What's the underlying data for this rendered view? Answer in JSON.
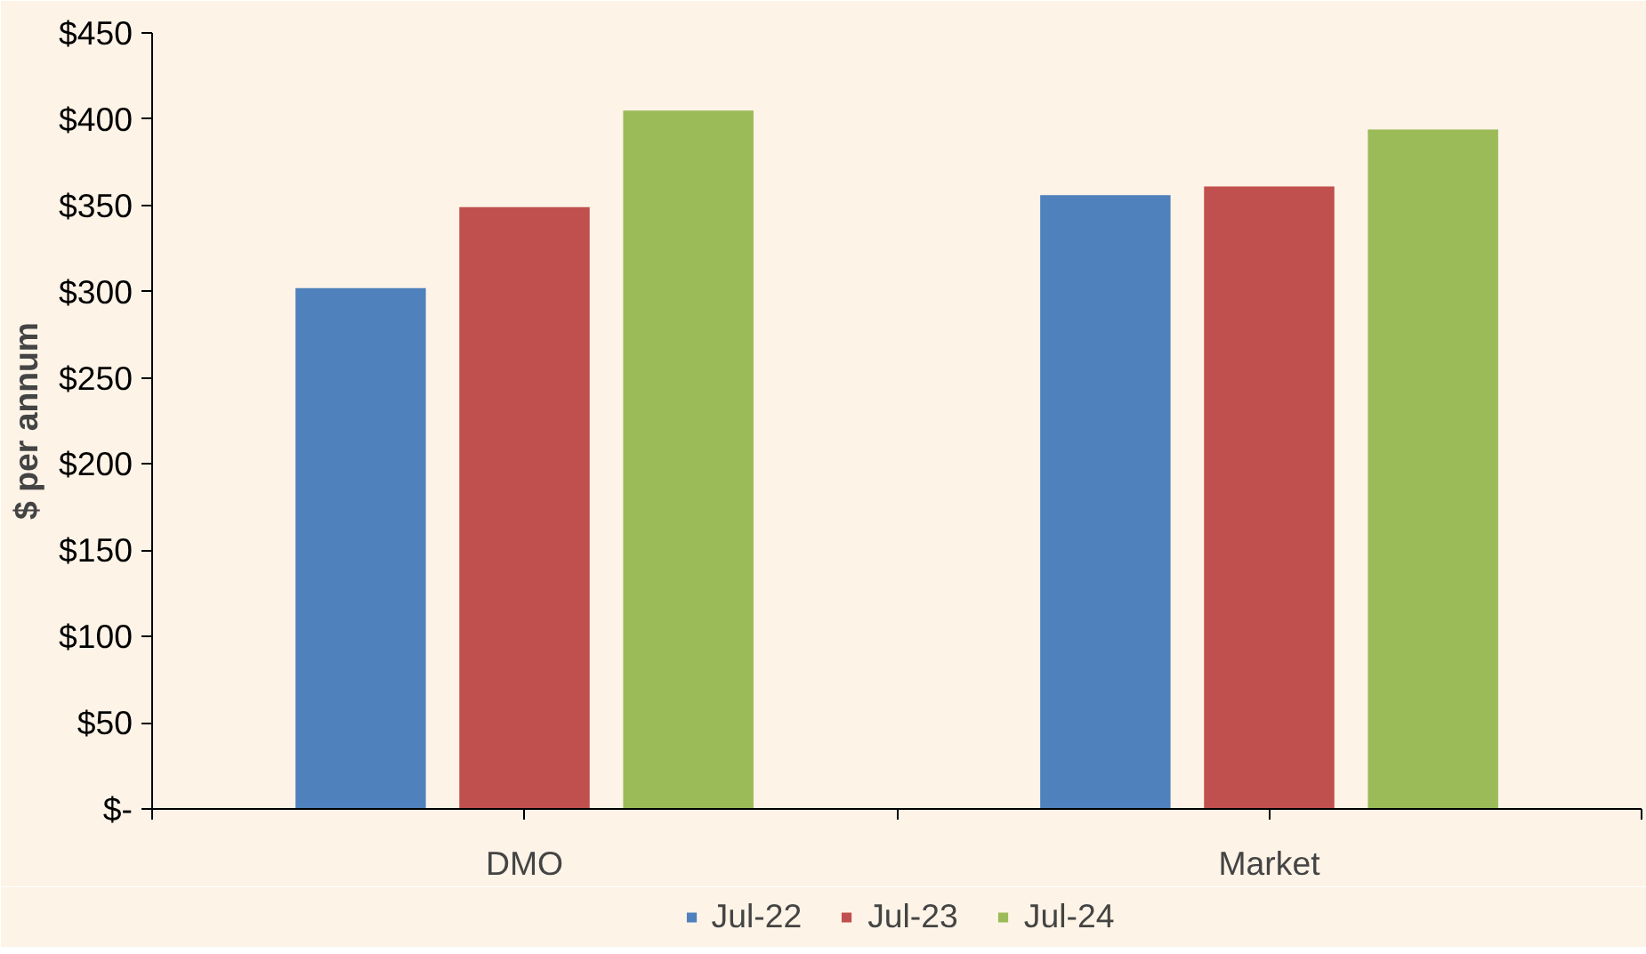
{
  "chart_data": {
    "type": "bar",
    "ylabel": "$ per annum",
    "categories": [
      "DMO",
      "Market"
    ],
    "series": [
      {
        "name": "Jul-22",
        "color": "#4f81bd",
        "values": [
          302,
          356
        ]
      },
      {
        "name": "Jul-23",
        "color": "#c0504d",
        "values": [
          349,
          361
        ]
      },
      {
        "name": "Jul-24",
        "color": "#9bbb59",
        "values": [
          405,
          394
        ]
      }
    ],
    "ylim": [
      0,
      450
    ],
    "yticks": [
      {
        "value": 0,
        "label": "$-"
      },
      {
        "value": 50,
        "label": "$50"
      },
      {
        "value": 100,
        "label": "$100"
      },
      {
        "value": 150,
        "label": "$150"
      },
      {
        "value": 200,
        "label": "$200"
      },
      {
        "value": 250,
        "label": "$250"
      },
      {
        "value": 300,
        "label": "$300"
      },
      {
        "value": 350,
        "label": "$350"
      },
      {
        "value": 400,
        "label": "$400"
      },
      {
        "value": 450,
        "label": "$450"
      }
    ],
    "grid": false,
    "legend": "bottom"
  }
}
